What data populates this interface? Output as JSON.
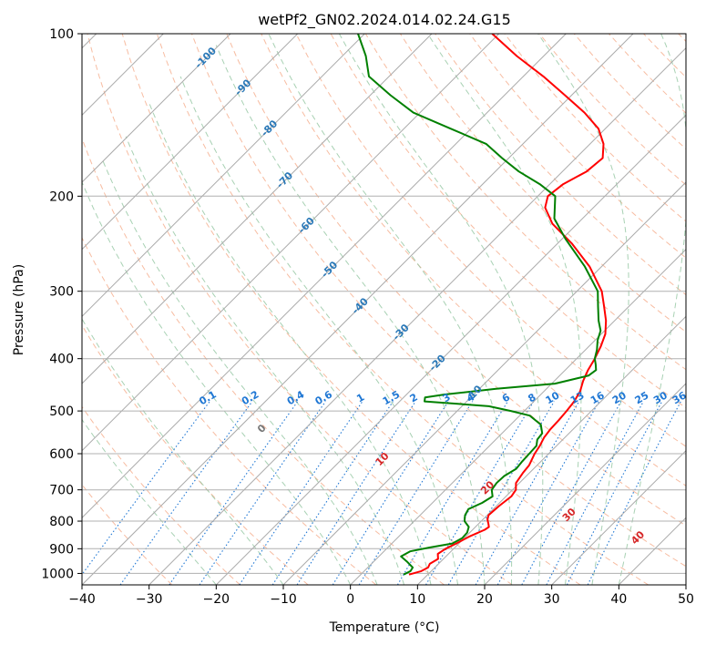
{
  "chart_data": {
    "type": "line",
    "title": "wetPf2_GN02.2024.014.02.24.G15",
    "xlabel": "Temperature (°C)",
    "ylabel": "Pressure (hPa)",
    "xlim": [
      -40,
      50
    ],
    "ylim": [
      1050,
      100
    ],
    "yscale": "log",
    "grid": true,
    "skew_t": true,
    "x_ticks": [
      "−40",
      "−30",
      "−20",
      "−10",
      "0",
      "10",
      "20",
      "30",
      "40",
      "50"
    ],
    "x_tick_values": [
      -40,
      -30,
      -20,
      -10,
      0,
      10,
      20,
      30,
      40,
      50
    ],
    "y_ticks": [
      "100",
      "200",
      "300",
      "400",
      "500",
      "600",
      "700",
      "800",
      "900",
      "1000"
    ],
    "y_tick_values": [
      100,
      200,
      300,
      400,
      500,
      600,
      700,
      800,
      900,
      1000
    ],
    "colors": {
      "temperature": "#ff0000",
      "dewpoint": "#008000",
      "isotherm": "#aaaaaa",
      "dry_adiabat": "#f4a582",
      "moist_adiabat": "#92c5a0",
      "mixing_ratio": "#1f77d4",
      "label_blue": "#2b79b8",
      "label_red": "#d62728",
      "label_gray": "#777777"
    },
    "series": [
      {
        "key": "temperature",
        "points": [
          [
            7.2,
            1005
          ],
          [
            8.5,
            990
          ],
          [
            9.0,
            975
          ],
          [
            8.7,
            960
          ],
          [
            9.2,
            940
          ],
          [
            8.4,
            920
          ],
          [
            8.8,
            900
          ],
          [
            9.6,
            880
          ],
          [
            10.5,
            855
          ],
          [
            11.8,
            830
          ],
          [
            12.0,
            820
          ],
          [
            11.5,
            810
          ],
          [
            10.7,
            795
          ],
          [
            10.2,
            780
          ],
          [
            10.4,
            750
          ],
          [
            10.8,
            720
          ],
          [
            10.5,
            700
          ],
          [
            9.5,
            680
          ],
          [
            9.0,
            650
          ],
          [
            8.8,
            630
          ],
          [
            7.9,
            600
          ],
          [
            7.5,
            580
          ],
          [
            6.9,
            560
          ],
          [
            6.6,
            540
          ],
          [
            6.5,
            520
          ],
          [
            6.3,
            500
          ],
          [
            6.0,
            480
          ],
          [
            5.4,
            460
          ],
          [
            4.3,
            440
          ],
          [
            3.4,
            420
          ],
          [
            2.7,
            400
          ],
          [
            1.8,
            380
          ],
          [
            0.6,
            360
          ],
          [
            -1.3,
            340
          ],
          [
            -3.7,
            320
          ],
          [
            -6.3,
            300
          ],
          [
            -11.8,
            270
          ],
          [
            -17.8,
            245
          ],
          [
            -23.7,
            225
          ],
          [
            -27.2,
            210
          ],
          [
            -28.5,
            200
          ],
          [
            -28.0,
            190
          ],
          [
            -26.4,
            180
          ],
          [
            -26.0,
            170
          ],
          [
            -28.0,
            160
          ],
          [
            -31.0,
            150
          ],
          [
            -35.5,
            140
          ],
          [
            -41.0,
            130
          ],
          [
            -47.0,
            120
          ],
          [
            -54.0,
            110
          ],
          [
            -61.0,
            100
          ]
        ]
      },
      {
        "key": "dewpoint",
        "points": [
          [
            6.4,
            1005
          ],
          [
            6.9,
            990
          ],
          [
            6.7,
            975
          ],
          [
            4.9,
            950
          ],
          [
            3.3,
            930
          ],
          [
            3.9,
            910
          ],
          [
            6.3,
            895
          ],
          [
            9.0,
            880
          ],
          [
            9.7,
            860
          ],
          [
            9.6,
            840
          ],
          [
            9.0,
            820
          ],
          [
            7.5,
            800
          ],
          [
            6.7,
            780
          ],
          [
            6.3,
            760
          ],
          [
            7.4,
            740
          ],
          [
            8.0,
            720
          ],
          [
            6.9,
            700
          ],
          [
            6.6,
            680
          ],
          [
            6.7,
            660
          ],
          [
            7.4,
            640
          ],
          [
            7.2,
            620
          ],
          [
            7.1,
            600
          ],
          [
            7.0,
            580
          ],
          [
            6.2,
            565
          ],
          [
            6.0,
            550
          ],
          [
            4.5,
            530
          ],
          [
            1.5,
            510
          ],
          [
            -2.0,
            500
          ],
          [
            -6.0,
            490
          ],
          [
            -11.0,
            485
          ],
          [
            -16.3,
            480
          ],
          [
            -16.8,
            472
          ],
          [
            -14.3,
            466
          ],
          [
            -7.5,
            455
          ],
          [
            0.5,
            445
          ],
          [
            4.3,
            430
          ],
          [
            4.6,
            420
          ],
          [
            3.7,
            410
          ],
          [
            2.7,
            400
          ],
          [
            1.7,
            385
          ],
          [
            0.4,
            370
          ],
          [
            -0.6,
            355
          ],
          [
            -2.4,
            340
          ],
          [
            -4.6,
            320
          ],
          [
            -6.9,
            300
          ],
          [
            -12.5,
            270
          ],
          [
            -19.5,
            240
          ],
          [
            -24.2,
            220
          ],
          [
            -27.4,
            200
          ],
          [
            -31.5,
            190
          ],
          [
            -36.5,
            180
          ],
          [
            -41.0,
            170
          ],
          [
            -45.5,
            160
          ],
          [
            -53.0,
            150
          ],
          [
            -61.0,
            140
          ],
          [
            -67.0,
            130
          ],
          [
            -73.0,
            120
          ],
          [
            -76.5,
            110
          ],
          [
            -81.0,
            100
          ]
        ]
      }
    ],
    "isotherm_labels": [
      {
        "text": "-100",
        "T": -100,
        "p": 111
      },
      {
        "text": "-90",
        "T": -90,
        "p": 126
      },
      {
        "text": "-80",
        "T": -80,
        "p": 150
      },
      {
        "text": "-70",
        "T": -70,
        "p": 187
      },
      {
        "text": "-60",
        "T": -60,
        "p": 227
      },
      {
        "text": "-50",
        "T": -50,
        "p": 274
      },
      {
        "text": "-40",
        "T": -40,
        "p": 320
      },
      {
        "text": "-30",
        "T": -30,
        "p": 358
      },
      {
        "text": "-20",
        "T": -20,
        "p": 408
      },
      {
        "text": "-10",
        "T": -10,
        "p": 465
      }
    ],
    "mixing_ratio_labels": [
      "0.1",
      "0.2",
      "0.4",
      "0.6",
      "1",
      "1.5",
      "2",
      "3",
      "4",
      "6",
      "8",
      "10",
      "13",
      "16",
      "20",
      "25",
      "30",
      "36"
    ],
    "mixing_ratio_values": [
      0.1,
      0.2,
      0.4,
      0.6,
      1,
      1.5,
      2,
      3,
      4,
      6,
      8,
      10,
      13,
      16,
      20,
      25,
      30,
      36
    ],
    "mixing_ratio_label_p": 485,
    "moist_adiabat_labels": [
      {
        "text": "0",
        "theta": 0,
        "p": 540
      },
      {
        "text": "10",
        "theta": 10,
        "p": 618
      },
      {
        "text": "20",
        "theta": 20,
        "p": 695
      },
      {
        "text": "30",
        "theta": 30,
        "p": 780
      },
      {
        "text": "40",
        "theta": 40,
        "p": 860
      }
    ]
  }
}
